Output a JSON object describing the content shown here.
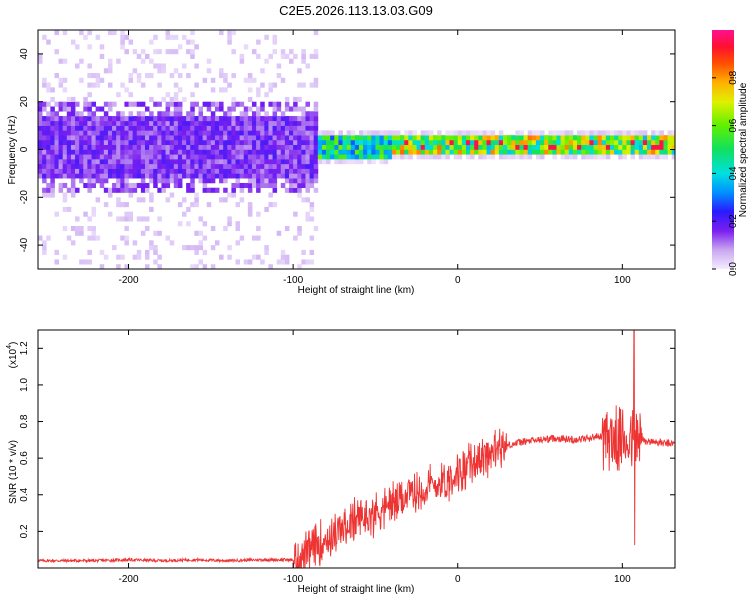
{
  "title": "C2E5.2026.113.13.03.G09",
  "chart_data": [
    {
      "type": "heatmap",
      "xlabel": "Height of straight line (km)",
      "ylabel": "Frequency (Hz)",
      "xlim": [
        -255,
        132
      ],
      "ylim": [
        -50,
        50
      ],
      "xticks": [
        -200,
        -100,
        0,
        100
      ],
      "yticks": [
        -40,
        -20,
        0,
        20,
        40
      ],
      "xtick_labels": [
        "-200",
        "-100",
        "0",
        "100"
      ],
      "ytick_labels": [
        "-40",
        "-20",
        "0",
        "20",
        "40"
      ],
      "colorbar": {
        "label": "Normalized spectral amplitude",
        "range": [
          0,
          1
        ],
        "ticks": [
          0.0,
          0.2,
          0.4,
          0.6,
          0.8
        ],
        "tick_labels": [
          "0.0",
          "0.2",
          "0.4",
          "0.6",
          "0.8"
        ]
      },
      "description_points": [
        {
          "x_range": [
            -255,
            -85
          ],
          "noise_band_hz": [
            -50,
            50
          ],
          "core_band_hz": [
            -12,
            12
          ],
          "core_amplitude": 0.15
        },
        {
          "x_range": [
            -85,
            -40
          ],
          "core_band_hz": [
            -5,
            5
          ],
          "core_amplitude": 0.45
        },
        {
          "x_range": [
            -40,
            132
          ],
          "core_band_hz": [
            -3,
            4
          ],
          "core_amplitude": 0.6,
          "peak_amplitude": 0.95
        }
      ]
    },
    {
      "type": "line",
      "xlabel": "Height of straight line (km)",
      "ylabel": "SNR (10 * v/v)",
      "yscale_label": "(x10",
      "yscale_exp": "4",
      "xlim": [
        -255,
        132
      ],
      "ylim": [
        0,
        1.3
      ],
      "xticks": [
        -200,
        -100,
        0,
        100
      ],
      "yticks": [
        0.2,
        0.4,
        0.6,
        0.8,
        1.0,
        1.2
      ],
      "xtick_labels": [
        "-200",
        "-100",
        "0",
        "100"
      ],
      "ytick_labels": [
        "0.2",
        "0.4",
        "0.6",
        "0.8",
        "1.0",
        "1.2"
      ],
      "color": "#ee3333",
      "series": [
        {
          "name": "SNR",
          "x": [
            -255,
            -240,
            -220,
            -200,
            -180,
            -160,
            -140,
            -120,
            -100,
            -95,
            -90,
            -85,
            -80,
            -75,
            -70,
            -65,
            -60,
            -55,
            -50,
            -45,
            -40,
            -35,
            -30,
            -25,
            -20,
            -15,
            -10,
            -5,
            0,
            5,
            10,
            15,
            20,
            25,
            30,
            40,
            50,
            60,
            70,
            80,
            85,
            90,
            95,
            100,
            105,
            110,
            115,
            120,
            125,
            132
          ],
          "y": [
            0.04,
            0.04,
            0.04,
            0.045,
            0.04,
            0.045,
            0.04,
            0.045,
            0.045,
            0.06,
            0.09,
            0.13,
            0.16,
            0.18,
            0.21,
            0.24,
            0.27,
            0.28,
            0.3,
            0.33,
            0.35,
            0.37,
            0.4,
            0.41,
            0.43,
            0.45,
            0.47,
            0.49,
            0.52,
            0.55,
            0.58,
            0.61,
            0.63,
            0.65,
            0.67,
            0.69,
            0.7,
            0.71,
            0.7,
            0.71,
            0.72,
            0.72,
            0.7,
            0.7,
            0.71,
            0.7,
            0.69,
            0.69,
            0.68,
            0.68
          ]
        }
      ]
    }
  ]
}
